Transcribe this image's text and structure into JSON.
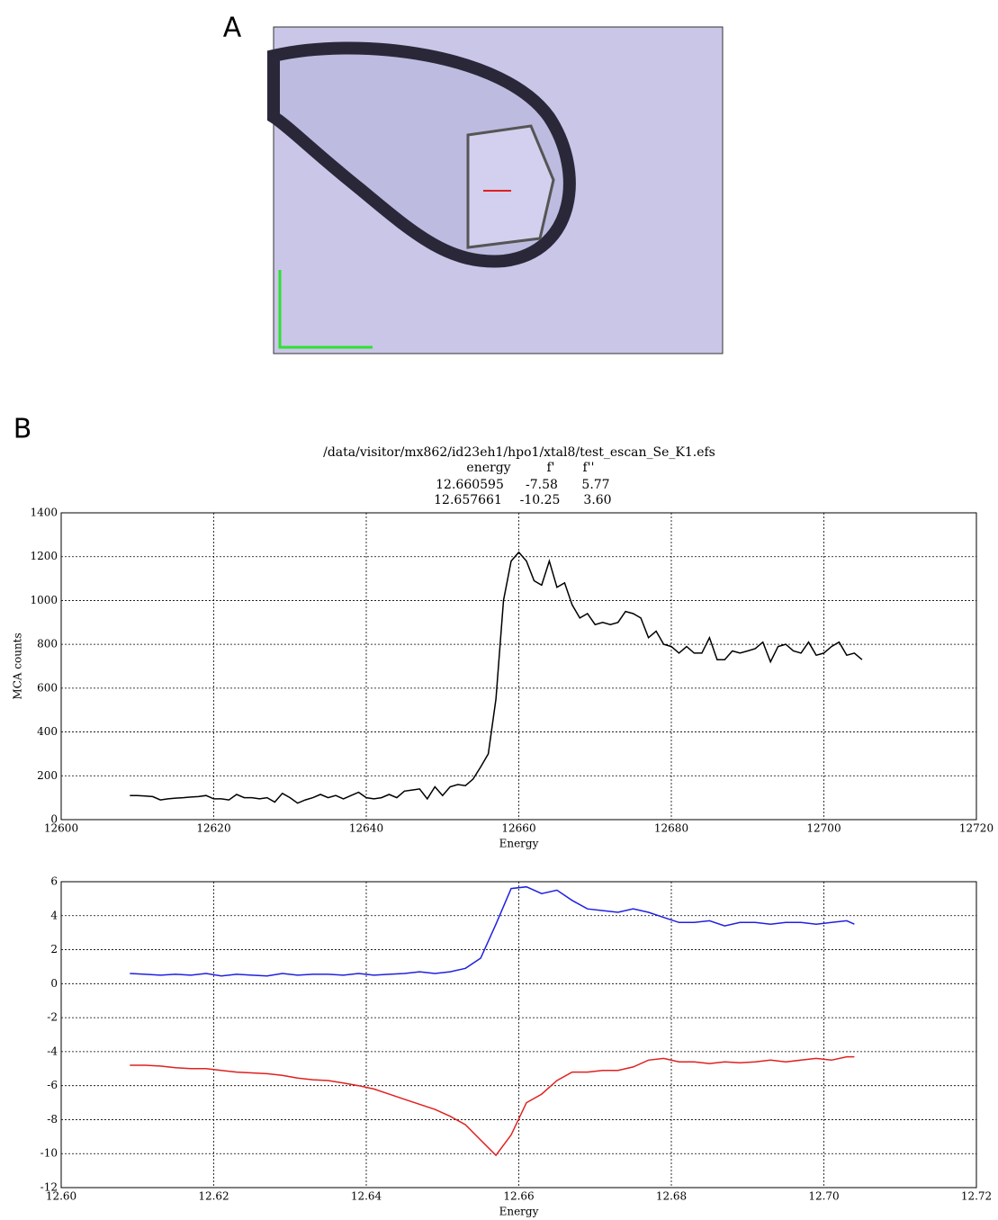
{
  "panel_labels": [
    "A",
    "B"
  ],
  "header": {
    "title": "/data/visitor/mx862/id23eh1/hpo1/xtal8/test_escan_Se_K1.efs",
    "columns": [
      "energy",
      "f'",
      "f''"
    ],
    "rows": [
      [
        "12.660595",
        "-7.58",
        "5.77"
      ],
      [
        "12.657661",
        "-10.25",
        "3.60"
      ]
    ]
  },
  "chart_data": [
    {
      "type": "line",
      "x_label": "Energy",
      "y_label": "MCA counts",
      "x": [
        12609,
        12610,
        12611,
        12612,
        12613,
        12614,
        12615,
        12616,
        12617,
        12618,
        12619,
        12620,
        12621,
        12622,
        12623,
        12624,
        12625,
        12626,
        12627,
        12628,
        12629,
        12630,
        12631,
        12632,
        12633,
        12634,
        12635,
        12636,
        12637,
        12638,
        12639,
        12640,
        12641,
        12642,
        12643,
        12644,
        12645,
        12646,
        12647,
        12648,
        12649,
        12650,
        12651,
        12652,
        12653,
        12654,
        12655,
        12656,
        12657,
        12658,
        12659,
        12660,
        12661,
        12662,
        12663,
        12664,
        12665,
        12666,
        12667,
        12668,
        12669,
        12670,
        12671,
        12672,
        12673,
        12674,
        12675,
        12676,
        12677,
        12678,
        12679,
        12680,
        12681,
        12682,
        12683,
        12684,
        12685,
        12686,
        12687,
        12688,
        12689,
        12690,
        12691,
        12692,
        12693,
        12694,
        12695,
        12696,
        12697,
        12698,
        12699,
        12700,
        12701,
        12702,
        12703,
        12704,
        12705
      ],
      "series": [
        {
          "color": "#000000",
          "values": [
            110,
            110,
            108,
            105,
            90,
            95,
            98,
            100,
            103,
            105,
            110,
            95,
            95,
            90,
            115,
            100,
            100,
            95,
            100,
            80,
            120,
            100,
            75,
            90,
            100,
            115,
            100,
            110,
            95,
            110,
            125,
            100,
            95,
            100,
            115,
            100,
            130,
            135,
            140,
            95,
            150,
            110,
            150,
            160,
            155,
            185,
            240,
            300,
            550,
            1000,
            1180,
            1220,
            1180,
            1090,
            1070,
            1180,
            1060,
            1080,
            980,
            920,
            940,
            890,
            900,
            890,
            900,
            950,
            940,
            920,
            830,
            860,
            800,
            790,
            760,
            790,
            760,
            760,
            830,
            730,
            730,
            770,
            760,
            770,
            780,
            810,
            720,
            790,
            800,
            770,
            760,
            810,
            750,
            760,
            790,
            810,
            750,
            760,
            730
          ]
        }
      ],
      "xlim": [
        12600,
        12720
      ],
      "xticks": [
        12600,
        12620,
        12640,
        12660,
        12680,
        12700,
        12720
      ],
      "ylim": [
        0,
        1400
      ],
      "yticks": [
        0,
        200,
        400,
        600,
        800,
        1000,
        1200,
        1400
      ],
      "grid": true
    },
    {
      "type": "line",
      "x_label": "Energy",
      "x": [
        12.609,
        12.611,
        12.613,
        12.615,
        12.617,
        12.619,
        12.621,
        12.623,
        12.625,
        12.627,
        12.629,
        12.631,
        12.633,
        12.635,
        12.637,
        12.639,
        12.641,
        12.643,
        12.645,
        12.647,
        12.649,
        12.651,
        12.653,
        12.655,
        12.657,
        12.659,
        12.661,
        12.663,
        12.665,
        12.667,
        12.669,
        12.671,
        12.673,
        12.675,
        12.677,
        12.679,
        12.681,
        12.683,
        12.685,
        12.687,
        12.689,
        12.691,
        12.693,
        12.695,
        12.697,
        12.699,
        12.701,
        12.703,
        12.704
      ],
      "series": [
        {
          "color": "#2020e0",
          "values": [
            0.6,
            0.55,
            0.5,
            0.55,
            0.5,
            0.6,
            0.45,
            0.55,
            0.5,
            0.45,
            0.6,
            0.5,
            0.55,
            0.55,
            0.5,
            0.6,
            0.5,
            0.55,
            0.6,
            0.7,
            0.6,
            0.7,
            0.9,
            1.5,
            3.5,
            5.6,
            5.7,
            5.3,
            5.5,
            4.9,
            4.4,
            4.3,
            4.2,
            4.4,
            4.2,
            3.9,
            3.6,
            3.6,
            3.7,
            3.4,
            3.6,
            3.6,
            3.5,
            3.6,
            3.6,
            3.5,
            3.6,
            3.7,
            3.5
          ]
        },
        {
          "color": "#e02020",
          "values": [
            -4.8,
            -4.8,
            -4.85,
            -4.95,
            -5,
            -5,
            -5.1,
            -5.2,
            -5.25,
            -5.3,
            -5.4,
            -5.55,
            -5.65,
            -5.7,
            -5.85,
            -6,
            -6.2,
            -6.5,
            -6.8,
            -7.1,
            -7.4,
            -7.8,
            -8.3,
            -9.2,
            -10.1,
            -8.9,
            -7,
            -6.5,
            -5.7,
            -5.2,
            -5.2,
            -5.1,
            -5.1,
            -4.9,
            -4.5,
            -4.4,
            -4.6,
            -4.6,
            -4.7,
            -4.6,
            -4.65,
            -4.6,
            -4.5,
            -4.6,
            -4.5,
            -4.4,
            -4.5,
            -4.3,
            -4.3
          ]
        }
      ],
      "xlim": [
        12.6,
        12.72
      ],
      "xticks": [
        {
          "value": 12.6,
          "label": "12.60"
        },
        12.62,
        12.64,
        12.66,
        12.68,
        {
          "value": 12.7,
          "label": "12.70"
        },
        12.72
      ],
      "ylim": [
        -12,
        6
      ],
      "yticks": [
        -12,
        -10,
        -8,
        -6,
        -4,
        -2,
        0,
        2,
        4,
        6
      ],
      "grid": true
    }
  ]
}
